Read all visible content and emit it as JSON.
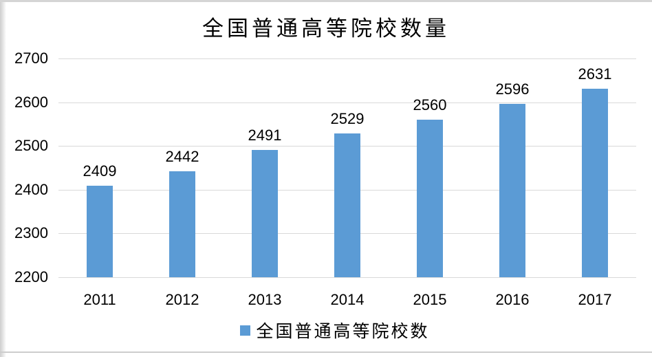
{
  "chart_data": {
    "type": "bar",
    "title": "全国普通高等院校数量",
    "categories": [
      "2011",
      "2012",
      "2013",
      "2014",
      "2015",
      "2016",
      "2017"
    ],
    "series": [
      {
        "name": "全国普通高等院校数",
        "values": [
          2409,
          2442,
          2491,
          2529,
          2560,
          2596,
          2631
        ]
      }
    ],
    "xlabel": "",
    "ylabel": "",
    "ylim": [
      2200,
      2700
    ],
    "yticks": [
      2700,
      2600,
      2500,
      2400,
      2300,
      2200
    ],
    "grid": "horizontal",
    "data_labels": true,
    "legend_position": "bottom",
    "colors": {
      "bar": "#5b9bd5",
      "gridline": "#d9d9d9",
      "text": "#000000",
      "frame_edge": "#d5d5d5"
    }
  },
  "legend": {
    "label": "全国普通高等院校数",
    "swatch_color": "#5b9bd5"
  }
}
